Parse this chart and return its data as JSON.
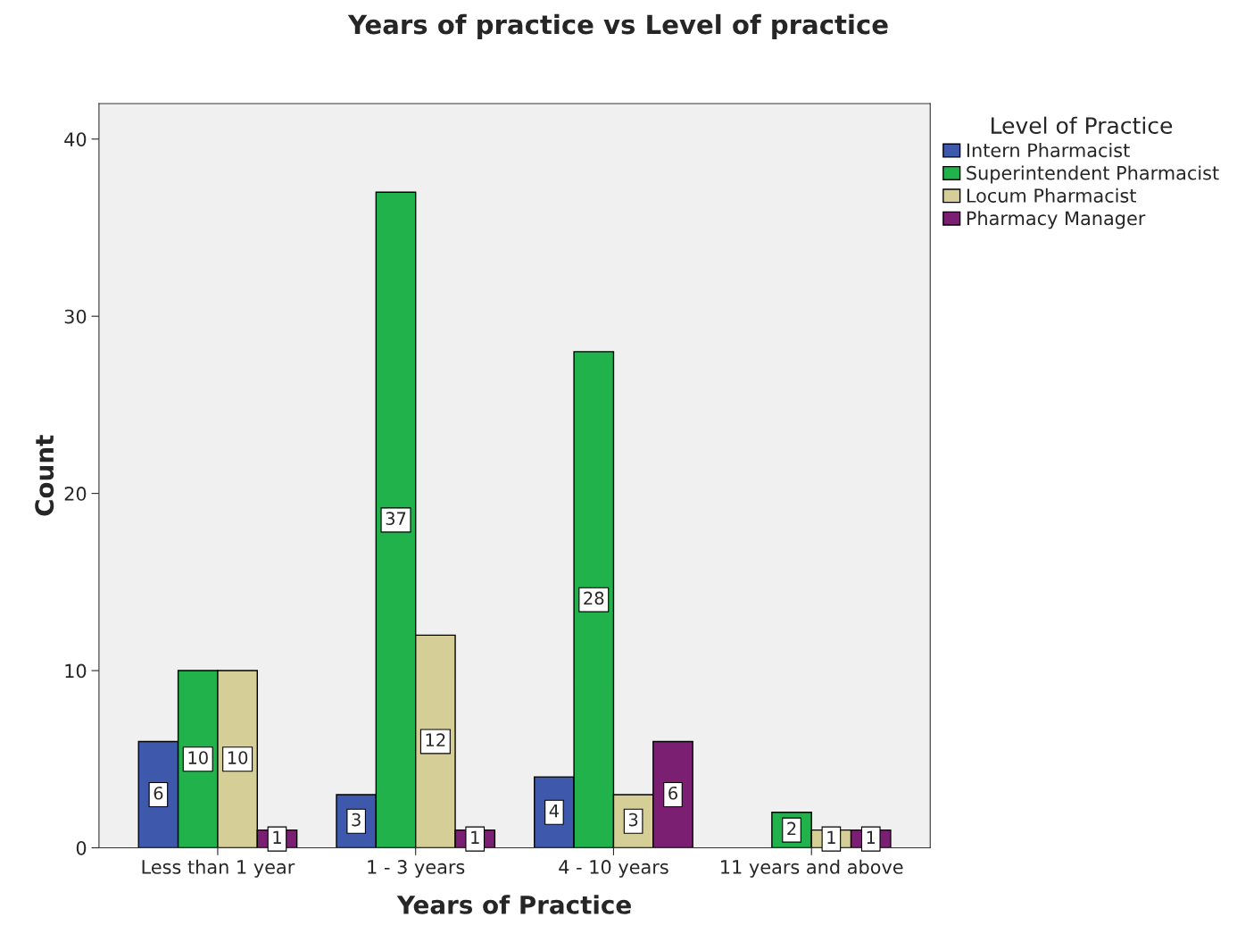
{
  "chart_data": {
    "type": "bar",
    "title": "Years of practice vs Level of practice",
    "xlabel": "Years of Practice",
    "ylabel": "Count",
    "legend_title": "Level of Practice",
    "categories": [
      "Less than 1 year",
      "1 - 3 years",
      "4 - 10 years",
      "11 years and above"
    ],
    "series": [
      {
        "name": "Intern Pharmacist",
        "color": "#3e58ac",
        "values": [
          6,
          3,
          4,
          null
        ]
      },
      {
        "name": "Superintendent Pharmacist",
        "color": "#21b24b",
        "values": [
          10,
          37,
          28,
          2
        ]
      },
      {
        "name": "Locum Pharmacist",
        "color": "#d5cf97",
        "values": [
          10,
          12,
          3,
          1
        ]
      },
      {
        "name": "Pharmacy Manager",
        "color": "#7b1f72",
        "values": [
          1,
          1,
          6,
          1
        ]
      }
    ],
    "ylim": [
      0,
      42
    ],
    "yticks": [
      0,
      10,
      20,
      30,
      40
    ],
    "grid": false,
    "legend": "top right",
    "data_labels": true
  }
}
